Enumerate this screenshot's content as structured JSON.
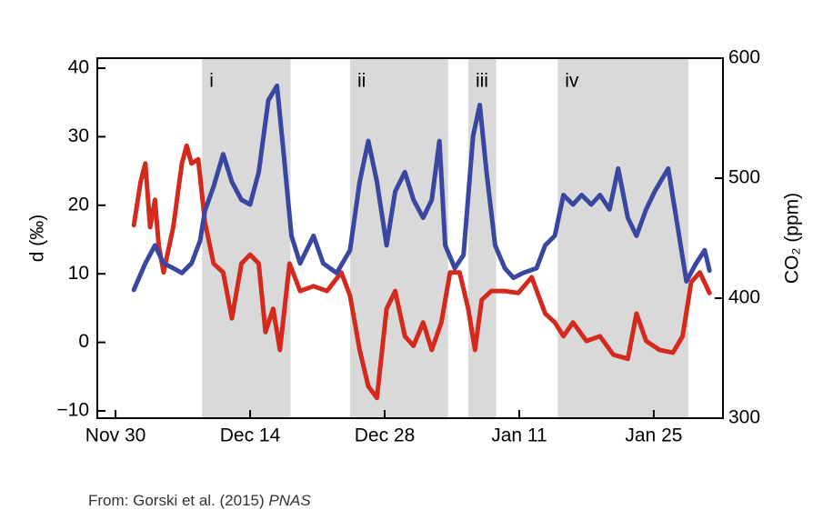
{
  "chart_data": {
    "type": "line",
    "y_label": "d (‰)",
    "y2_label": "CO₂ (ppm)",
    "xlim": [
      -1.9,
      63.2
    ],
    "xticks": [
      {
        "value": 0,
        "label": "Nov 30"
      },
      {
        "value": 14,
        "label": "Dec 14"
      },
      {
        "value": 28,
        "label": "Dec 28"
      },
      {
        "value": 42,
        "label": "Jan 11"
      },
      {
        "value": 56,
        "label": "Jan 25"
      }
    ],
    "ylim": [
      -11.06,
      41.46
    ],
    "yticks": [
      {
        "value": -10,
        "label": "−10"
      },
      0,
      10,
      20,
      30,
      40
    ],
    "y2lim": [
      300,
      600
    ],
    "y2ticks": [
      300,
      400,
      500,
      600
    ],
    "shaded_regions": [
      {
        "label": "i",
        "start": 9.0,
        "end": 18.2
      },
      {
        "label": "ii",
        "start": 24.4,
        "end": 34.6
      },
      {
        "label": "iii",
        "start": 36.7,
        "end": 39.6
      },
      {
        "label": "iv",
        "start": 46.0,
        "end": 59.6
      }
    ],
    "shade_color": "#d9d9d9",
    "series": [
      {
        "color": "#d42a1e",
        "axis": "y",
        "x": [
          1.9,
          2.6,
          3.1,
          3.6,
          4.1,
          4.5,
          5.0,
          6.0,
          6.9,
          7.4,
          7.9,
          8.6,
          9.3,
          10.2,
          11.2,
          12.1,
          13.1,
          14.0,
          14.9,
          15.6,
          16.4,
          17.1,
          18.1,
          19.2,
          20.6,
          22.0,
          23.5,
          24.4,
          25.4,
          26.3,
          27.2,
          28.2,
          29.1,
          30.1,
          31.0,
          32.0,
          32.9,
          33.9,
          34.8,
          35.8,
          36.7,
          37.4,
          38.1,
          39.1,
          40.5,
          41.9,
          43.3,
          44.7,
          45.7,
          46.6,
          47.6,
          49.0,
          50.4,
          51.8,
          53.3,
          54.2,
          55.2,
          56.6,
          58.0,
          59.0,
          59.9,
          60.8,
          61.8
        ],
        "values": [
          17.1,
          23.4,
          26.1,
          16.8,
          20.8,
          14.1,
          10.2,
          16.8,
          26.1,
          28.7,
          26.1,
          26.7,
          17.5,
          11.5,
          10.2,
          3.5,
          11.5,
          12.8,
          11.5,
          1.5,
          4.9,
          -1.1,
          11.5,
          7.5,
          8.2,
          7.5,
          10.2,
          6.8,
          -1.1,
          -6.4,
          -8.1,
          4.9,
          7.5,
          0.9,
          -0.5,
          2.9,
          -1.1,
          2.9,
          10.2,
          10.2,
          4.9,
          -1.1,
          6.2,
          7.5,
          7.5,
          7.2,
          9.5,
          4.2,
          2.9,
          0.9,
          2.9,
          0.2,
          0.9,
          -1.8,
          -2.4,
          4.2,
          0.2,
          -1.1,
          -1.5,
          0.9,
          8.8,
          10.2,
          7.2
        ]
      },
      {
        "color": "#3a47a0",
        "axis": "y2",
        "x": [
          1.9,
          3.1,
          4.1,
          5.0,
          6.0,
          6.9,
          7.9,
          8.8,
          9.3,
          10.2,
          11.2,
          12.1,
          13.1,
          14.0,
          14.9,
          15.9,
          16.8,
          17.5,
          18.3,
          19.2,
          20.6,
          21.6,
          23.0,
          24.4,
          25.4,
          26.3,
          27.2,
          28.2,
          29.1,
          30.1,
          31.0,
          32.0,
          32.9,
          33.7,
          34.3,
          35.3,
          36.2,
          37.2,
          37.9,
          38.6,
          39.5,
          40.5,
          41.4,
          42.4,
          43.8,
          44.7,
          45.7,
          46.6,
          47.6,
          48.5,
          49.5,
          50.4,
          51.4,
          52.3,
          53.3,
          54.2,
          55.2,
          56.1,
          57.5,
          58.5,
          59.4,
          60.4,
          61.3,
          61.8
        ],
        "values": [
          407,
          429,
          444,
          429,
          425,
          421,
          429,
          448,
          473,
          493,
          520,
          497,
          482,
          478,
          505,
          565,
          577,
          520,
          452,
          429,
          452,
          429,
          421,
          440,
          497,
          531,
          497,
          444,
          489,
          505,
          482,
          467,
          482,
          531,
          444,
          425,
          436,
          535,
          561,
          505,
          444,
          425,
          417,
          421,
          425,
          444,
          452,
          486,
          478,
          486,
          478,
          486,
          474,
          508,
          467,
          452,
          474,
          489,
          508,
          459,
          414,
          429,
          440,
          423
        ]
      }
    ]
  },
  "source": {
    "text": "From: Gorski et al. (2015)",
    "journal": "PNAS"
  }
}
